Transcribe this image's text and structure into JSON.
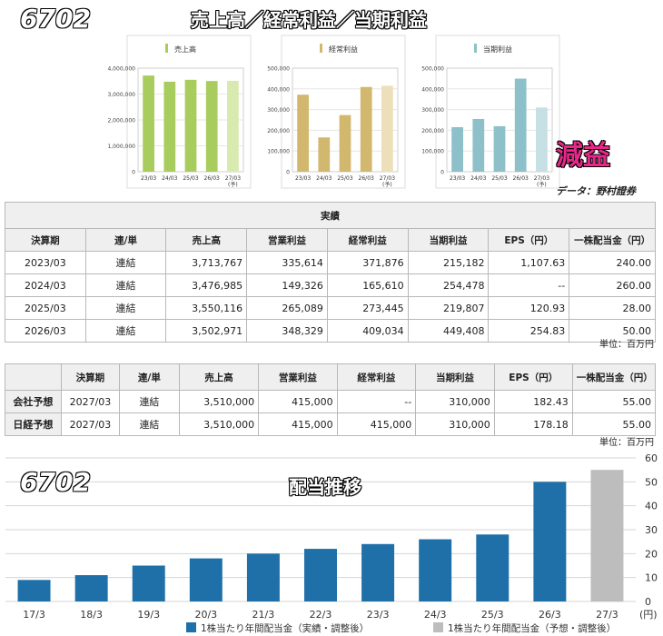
{
  "header": {
    "code": "6702",
    "title": "売上高／経常利益／当期利益",
    "verdict": "減益",
    "source": "データ：野村證券"
  },
  "chart_data": [
    {
      "type": "bar",
      "title": "売上高",
      "categories": [
        "23/03",
        "24/03",
        "25/03",
        "26/03",
        "27/03"
      ],
      "category_sublabels": [
        "",
        "",
        "",
        "",
        "(予)"
      ],
      "values": [
        3713767,
        3476985,
        3550116,
        3502971,
        3510000
      ],
      "forecast_index": 4,
      "ylim": [
        0,
        4000000
      ],
      "yticks": [
        0,
        1000000,
        2000000,
        3000000,
        4000000
      ],
      "ytick_labels": [
        "0",
        "1,000,000",
        "2,000,000",
        "3,000,000",
        "4,000,000"
      ],
      "color": "#a8cd5e",
      "forecast_color": "#d9eab0"
    },
    {
      "type": "bar",
      "title": "経常利益",
      "categories": [
        "23/03",
        "24/03",
        "25/03",
        "26/03",
        "27/03"
      ],
      "category_sublabels": [
        "",
        "",
        "",
        "",
        "(予)"
      ],
      "values": [
        371876,
        165610,
        273445,
        409034,
        415000
      ],
      "forecast_index": 4,
      "ylim": [
        0,
        500000
      ],
      "yticks": [
        0,
        100000,
        200000,
        300000,
        400000,
        500000
      ],
      "ytick_labels": [
        "0",
        "100,000",
        "200,000",
        "300,000",
        "400,000",
        "500,000"
      ],
      "color": "#d2b86e",
      "forecast_color": "#ecdfb9"
    },
    {
      "type": "bar",
      "title": "当期利益",
      "categories": [
        "23/03",
        "24/03",
        "25/03",
        "26/03",
        "27/03"
      ],
      "category_sublabels": [
        "",
        "",
        "",
        "",
        "(予)"
      ],
      "values": [
        215182,
        254478,
        219807,
        449408,
        310000
      ],
      "forecast_index": 4,
      "ylim": [
        0,
        500000
      ],
      "yticks": [
        0,
        100000,
        200000,
        300000,
        400000,
        500000
      ],
      "ytick_labels": [
        "0",
        "100,000",
        "200,000",
        "300,000",
        "400,000",
        "500,000"
      ],
      "color": "#8dc0c8",
      "forecast_color": "#c6dfe3"
    },
    {
      "type": "bar",
      "title": "配当推移",
      "code": "6702",
      "categories": [
        "17/3",
        "18/3",
        "19/3",
        "20/3",
        "21/3",
        "22/3",
        "23/3",
        "24/3",
        "25/3",
        "26/3",
        "27/3"
      ],
      "values": [
        9,
        11,
        15,
        18,
        20,
        22,
        24,
        26,
        28,
        50,
        55
      ],
      "forecast_index": 10,
      "ylim": [
        0,
        60
      ],
      "yticks": [
        0,
        10,
        20,
        30,
        40,
        50,
        60
      ],
      "ylabel_unit": "(円)",
      "grid": true,
      "legend": [
        {
          "label": "1株当たり年間配当金（実績・調整後）",
          "color": "#1f6fa8"
        },
        {
          "label": "1株当たり年間配当金（予想・調整後）",
          "color": "#bdbdbd"
        }
      ],
      "legend_position": "bottom",
      "color": "#1f6fa8",
      "forecast_color": "#bdbdbd"
    }
  ],
  "actuals_table": {
    "group_header": "実績",
    "columns": [
      "決算期",
      "連/単",
      "売上高",
      "営業利益",
      "経常利益",
      "当期利益",
      "EPS（円）",
      "一株配当金（円）"
    ],
    "rows": [
      [
        "2023/03",
        "連結",
        "3,713,767",
        "335,614",
        "371,876",
        "215,182",
        "1,107.63",
        "240.00"
      ],
      [
        "2024/03",
        "連結",
        "3,476,985",
        "149,326",
        "165,610",
        "254,478",
        "--",
        "260.00"
      ],
      [
        "2025/03",
        "連結",
        "3,550,116",
        "265,089",
        "273,445",
        "219,807",
        "120.93",
        "28.00"
      ],
      [
        "2026/03",
        "連結",
        "3,502,971",
        "348,329",
        "409,034",
        "449,408",
        "254.83",
        "50.00"
      ]
    ],
    "unit": "単位：百万円"
  },
  "forecast_table": {
    "columns": [
      "",
      "決算期",
      "連/単",
      "売上高",
      "営業利益",
      "経常利益",
      "当期利益",
      "EPS（円）",
      "一株配当金（円）"
    ],
    "rows": [
      [
        "会社予想",
        "2027/03",
        "連結",
        "3,510,000",
        "415,000",
        "--",
        "310,000",
        "182.43",
        "55.00"
      ],
      [
        "日経予想",
        "2027/03",
        "連結",
        "3,510,000",
        "415,000",
        "415,000",
        "310,000",
        "178.18",
        "55.00"
      ]
    ],
    "unit": "単位：百万円"
  }
}
